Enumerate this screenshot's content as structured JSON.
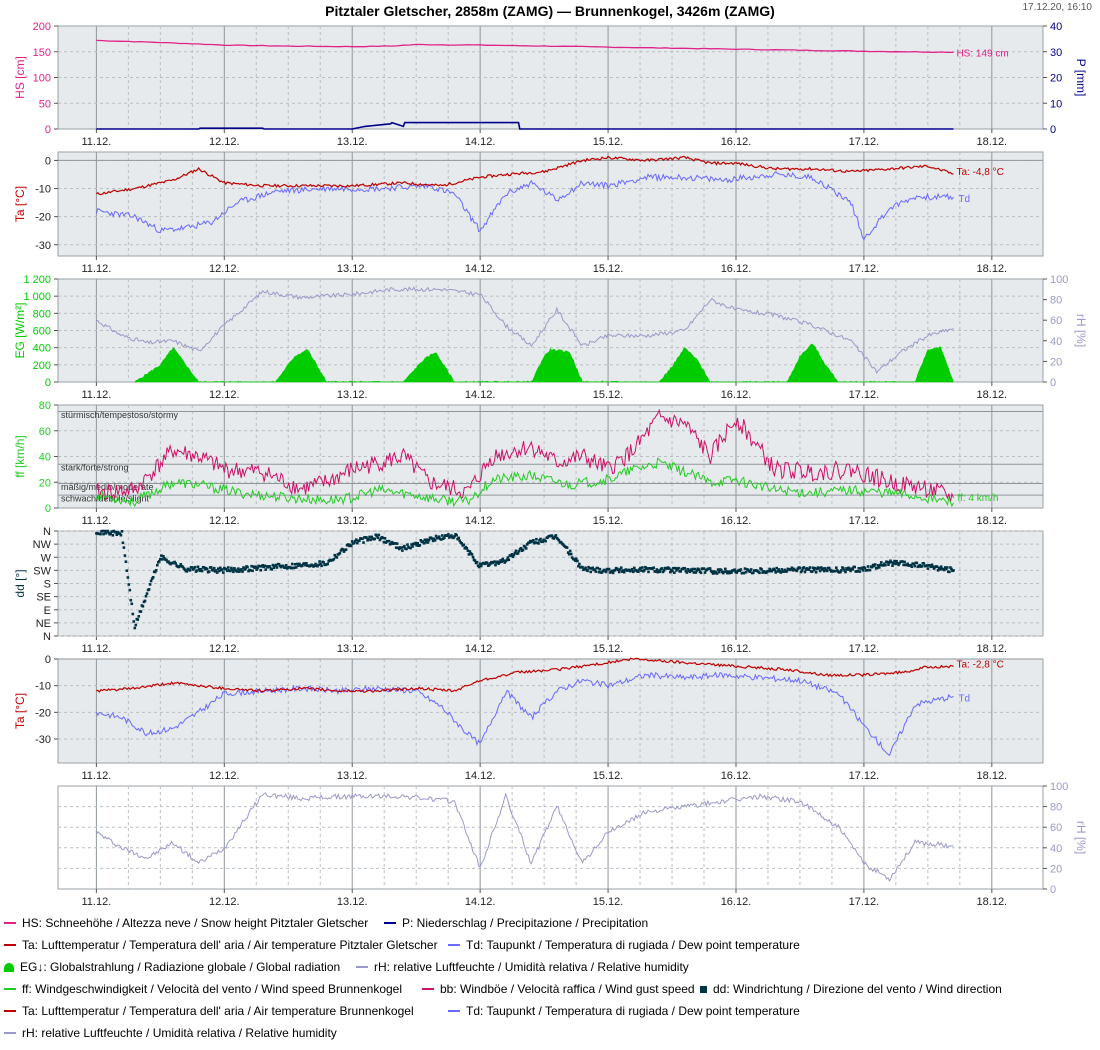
{
  "header": {
    "title": "Pitztaler Gletscher, 2858m (ZAMG) — Brunnenkogel, 3426m (ZAMG)",
    "timestamp": "17.12.20, 16:10"
  },
  "colors": {
    "snow": "#e0218a",
    "precip": "#00008b",
    "temp": "#c00000",
    "dew": "#6a6aff",
    "rh": "#9a9ac8",
    "radiation": "#00cc00",
    "wind": "#22cc22",
    "gust": "#cc1166",
    "winddir": "#003344",
    "panel_bg": "#e6eaec",
    "grid": "#b9bec2"
  },
  "chart_data": [
    {
      "type": "line",
      "panel": "snow-precip",
      "x_ticks": [
        "11.12.",
        "12.12.",
        "13.12.",
        "14.12.",
        "15.12.",
        "16.12.",
        "17.12.",
        "18.12."
      ],
      "ylabel": "HS [cm]",
      "ylim": [
        0,
        200
      ],
      "y_ticks": [
        "0",
        "50",
        "100",
        "150",
        "200"
      ],
      "y2label": "P [mm]",
      "y2lim": [
        0,
        40
      ],
      "y2_ticks": [
        "0",
        "10",
        "20",
        "30",
        "40"
      ],
      "annotation": "HS: 149 cm",
      "series": [
        {
          "name": "HS",
          "axis": "left",
          "x": [
            11.0,
            11.5,
            12.0,
            12.5,
            13.0,
            13.3,
            13.5,
            14.0,
            14.5,
            15.0,
            15.5,
            16.0,
            16.5,
            17.0,
            17.7
          ],
          "y": [
            172,
            168,
            163,
            161,
            160,
            161,
            164,
            163,
            161,
            159,
            157,
            155,
            153,
            151,
            149
          ]
        },
        {
          "name": "P",
          "axis": "right",
          "x": [
            11.0,
            11.8,
            11.81,
            12.3,
            12.31,
            13.0,
            13.1,
            13.3,
            13.31,
            13.4,
            13.41,
            14.3,
            14.31,
            17.7
          ],
          "y": [
            0,
            0,
            0.3,
            0.3,
            0,
            0,
            1,
            2,
            2.5,
            1,
            2.5,
            2.5,
            0,
            0
          ]
        }
      ]
    },
    {
      "type": "line",
      "panel": "temperature-pitztal",
      "x_ticks": [
        "11.12.",
        "12.12.",
        "13.12.",
        "14.12.",
        "15.12.",
        "16.12.",
        "17.12.",
        "18.12."
      ],
      "ylabel": "Ta [°C]",
      "ylim": [
        -34,
        3
      ],
      "y_ticks": [
        "-30",
        "-20",
        "-10",
        "0"
      ],
      "series": [
        {
          "name": "Ta",
          "label": "Ta: -4,8 °C",
          "x": [
            11.0,
            11.3,
            11.6,
            11.8,
            12.0,
            12.3,
            12.6,
            13.0,
            13.4,
            13.7,
            14.0,
            14.2,
            14.5,
            14.8,
            15.0,
            15.3,
            15.6,
            15.8,
            16.0,
            16.3,
            16.6,
            16.9,
            17.2,
            17.5,
            17.7
          ],
          "y": [
            -12,
            -10,
            -7,
            -3,
            -8,
            -9,
            -9,
            -9,
            -8,
            -9,
            -6,
            -5,
            -4,
            0,
            1,
            0,
            1,
            -1,
            -1,
            -3,
            -3,
            -4,
            -3,
            -2,
            -4.8
          ]
        },
        {
          "name": "Td",
          "label": "Td",
          "x": [
            11.0,
            11.3,
            11.5,
            11.7,
            11.9,
            12.1,
            12.4,
            12.8,
            13.2,
            13.6,
            13.8,
            14.0,
            14.2,
            14.4,
            14.6,
            14.8,
            15.0,
            15.3,
            15.6,
            15.9,
            16.3,
            16.6,
            16.9,
            17.0,
            17.2,
            17.4,
            17.7
          ],
          "y": [
            -18,
            -20,
            -25,
            -24,
            -22,
            -15,
            -11,
            -10,
            -10,
            -9,
            -12,
            -25,
            -12,
            -8,
            -14,
            -8,
            -9,
            -6,
            -6,
            -7,
            -5,
            -6,
            -15,
            -28,
            -17,
            -13,
            -13
          ]
        }
      ]
    },
    {
      "type": "area",
      "panel": "radiation-humidity",
      "x_ticks": [
        "11.12.",
        "12.12.",
        "13.12.",
        "14.12.",
        "15.12.",
        "16.12.",
        "17.12.",
        "18.12."
      ],
      "ylabel": "EG [W/m²]",
      "ylim": [
        0,
        1200
      ],
      "y_ticks": [
        "0",
        "200",
        "400",
        "600",
        "800",
        "1 000",
        "1 200"
      ],
      "y2label": "rH [%]",
      "y2lim": [
        0,
        100
      ],
      "y2_ticks": [
        "0",
        "20",
        "40",
        "60",
        "80",
        "100"
      ],
      "series": [
        {
          "name": "EG",
          "x": [
            11.3,
            11.5,
            11.6,
            11.7,
            11.8,
            12.4,
            12.55,
            12.65,
            12.8,
            13.4,
            13.55,
            13.65,
            13.8,
            14.4,
            14.5,
            14.55,
            14.7,
            14.8,
            15.4,
            15.5,
            15.6,
            15.7,
            15.8,
            16.4,
            16.5,
            16.6,
            16.7,
            16.8,
            17.4,
            17.5,
            17.6,
            17.7
          ],
          "y": [
            0,
            200,
            400,
            200,
            0,
            0,
            300,
            380,
            0,
            0,
            250,
            350,
            0,
            0,
            300,
            380,
            350,
            0,
            0,
            180,
            400,
            250,
            0,
            0,
            300,
            450,
            200,
            0,
            0,
            380,
            400,
            0
          ]
        },
        {
          "name": "rH",
          "axis": "right",
          "x": [
            11.0,
            11.2,
            11.4,
            11.6,
            11.8,
            12.0,
            12.3,
            12.6,
            13.0,
            13.3,
            13.7,
            14.0,
            14.2,
            14.4,
            14.6,
            14.8,
            15.0,
            15.3,
            15.6,
            15.8,
            16.0,
            16.3,
            16.6,
            16.9,
            17.1,
            17.3,
            17.5,
            17.7
          ],
          "y": [
            60,
            45,
            38,
            40,
            30,
            55,
            88,
            82,
            85,
            90,
            90,
            85,
            55,
            35,
            70,
            35,
            45,
            45,
            50,
            80,
            70,
            65,
            55,
            40,
            10,
            30,
            45,
            52
          ]
        }
      ]
    },
    {
      "type": "line",
      "panel": "wind-speed",
      "x_ticks": [
        "11.12.",
        "12.12.",
        "13.12.",
        "14.12.",
        "15.12.",
        "16.12.",
        "17.12.",
        "18.12."
      ],
      "ylabel": "ff [km/h]",
      "ylim": [
        0,
        80
      ],
      "y_ticks": [
        "0",
        "20",
        "40",
        "60",
        "80"
      ],
      "bands": [
        "stürmisch/tempestoso/stormy",
        "stark/forte/strong",
        "mäßig/medio/moderate",
        "schwach/debole/slight"
      ],
      "series": [
        {
          "name": "ff",
          "label": "ff: 4 km/h",
          "x": [
            11.0,
            11.3,
            11.6,
            11.8,
            12.1,
            12.5,
            12.8,
            13.0,
            13.2,
            13.5,
            13.7,
            13.9,
            14.1,
            14.4,
            14.7,
            15.0,
            15.2,
            15.4,
            15.6,
            15.8,
            16.0,
            16.3,
            16.6,
            16.9,
            17.2,
            17.5,
            17.7
          ],
          "y": [
            10,
            5,
            20,
            18,
            12,
            8,
            6,
            8,
            14,
            10,
            6,
            5,
            22,
            25,
            18,
            22,
            30,
            35,
            28,
            20,
            22,
            14,
            12,
            14,
            12,
            8,
            4
          ]
        },
        {
          "name": "bb",
          "x": [
            11.0,
            11.3,
            11.6,
            11.8,
            12.0,
            12.3,
            12.6,
            12.8,
            13.0,
            13.2,
            13.4,
            13.6,
            13.9,
            14.1,
            14.4,
            14.6,
            14.8,
            15.0,
            15.2,
            15.4,
            15.6,
            15.8,
            16.0,
            16.3,
            16.6,
            16.9,
            17.2,
            17.5,
            17.7
          ],
          "y": [
            12,
            14,
            45,
            40,
            30,
            28,
            15,
            20,
            30,
            35,
            40,
            20,
            12,
            40,
            48,
            35,
            40,
            30,
            45,
            70,
            65,
            40,
            70,
            30,
            28,
            30,
            20,
            15,
            8
          ]
        }
      ]
    },
    {
      "type": "scatter",
      "panel": "wind-direction",
      "x_ticks": [
        "11.12.",
        "12.12.",
        "13.12.",
        "14.12.",
        "15.12.",
        "16.12.",
        "17.12.",
        "18.12."
      ],
      "ylabel": "dd [°]",
      "y_ticks": [
        "N",
        "NE",
        "E",
        "SE",
        "S",
        "SW",
        "W",
        "NW",
        "N"
      ],
      "series": [
        {
          "name": "dd",
          "x": [
            11.0,
            11.2,
            11.3,
            11.5,
            11.7,
            12.0,
            12.3,
            12.5,
            12.8,
            13.0,
            13.2,
            13.4,
            13.6,
            13.8,
            14.0,
            14.2,
            14.4,
            14.6,
            14.8,
            15.0,
            15.3,
            15.6,
            15.9,
            16.2,
            16.5,
            16.8,
            17.0,
            17.2,
            17.5,
            17.7
          ],
          "y": [
            360,
            350,
            30,
            270,
            230,
            225,
            235,
            240,
            250,
            320,
            340,
            300,
            330,
            345,
            240,
            260,
            320,
            340,
            230,
            225,
            228,
            225,
            222,
            225,
            228,
            225,
            230,
            250,
            240,
            225
          ]
        }
      ]
    },
    {
      "type": "line",
      "panel": "temperature-brunnenkogel",
      "x_ticks": [
        "11.12.",
        "12.12.",
        "13.12.",
        "14.12.",
        "15.12.",
        "16.12.",
        "17.12.",
        "18.12."
      ],
      "ylabel": "Ta [°C]",
      "ylim": [
        -39,
        0
      ],
      "y_ticks": [
        "-30",
        "-20",
        "-10",
        "0"
      ],
      "series": [
        {
          "name": "Ta",
          "label": "Ta: -2,8 °C",
          "x": [
            11.0,
            11.3,
            11.6,
            12.0,
            12.3,
            12.6,
            12.9,
            13.2,
            13.5,
            13.8,
            14.0,
            14.3,
            14.6,
            14.9,
            15.2,
            15.5,
            15.8,
            16.1,
            16.4,
            16.7,
            17.0,
            17.3,
            17.5,
            17.7
          ],
          "y": [
            -12,
            -11,
            -9,
            -11,
            -12,
            -11,
            -12,
            -12,
            -11,
            -12,
            -8,
            -5,
            -4,
            -2,
            0,
            -1,
            -2,
            -3,
            -4,
            -6,
            -6,
            -5,
            -3,
            -2.8
          ]
        },
        {
          "name": "Td",
          "label": "Td",
          "x": [
            11.0,
            11.2,
            11.4,
            11.6,
            11.8,
            12.0,
            12.3,
            12.6,
            12.9,
            13.2,
            13.5,
            13.7,
            13.9,
            14.0,
            14.2,
            14.4,
            14.6,
            14.8,
            15.0,
            15.3,
            15.6,
            15.9,
            16.2,
            16.5,
            16.8,
            17.0,
            17.2,
            17.4,
            17.7
          ],
          "y": [
            -20,
            -22,
            -28,
            -26,
            -20,
            -13,
            -12,
            -11,
            -12,
            -11,
            -12,
            -18,
            -28,
            -32,
            -12,
            -22,
            -12,
            -8,
            -10,
            -6,
            -7,
            -6,
            -7,
            -8,
            -13,
            -25,
            -36,
            -17,
            -14
          ]
        }
      ]
    },
    {
      "type": "line",
      "panel": "humidity-brunnenkogel",
      "x_ticks": [
        "11.12.",
        "12.12.",
        "13.12.",
        "14.12.",
        "15.12.",
        "16.12.",
        "17.12.",
        "18.12."
      ],
      "y2label": "rH [%]",
      "y2lim": [
        0,
        100
      ],
      "y2_ticks": [
        "0",
        "20",
        "40",
        "60",
        "80",
        "100"
      ],
      "series": [
        {
          "name": "rH",
          "x": [
            11.0,
            11.2,
            11.4,
            11.6,
            11.8,
            12.0,
            12.3,
            12.6,
            13.0,
            13.4,
            13.8,
            14.0,
            14.2,
            14.4,
            14.6,
            14.8,
            15.0,
            15.3,
            15.6,
            15.9,
            16.2,
            16.5,
            16.8,
            17.0,
            17.2,
            17.4,
            17.7
          ],
          "y": [
            55,
            40,
            30,
            45,
            25,
            40,
            92,
            88,
            90,
            90,
            85,
            20,
            90,
            25,
            80,
            25,
            55,
            75,
            80,
            85,
            90,
            85,
            60,
            25,
            10,
            45,
            42
          ]
        }
      ]
    }
  ],
  "legend": [
    [
      {
        "kind": "line",
        "color": "snow",
        "label": "HS: Schneehöhe / Altezza neve / Snow height  Pitztaler Gletscher"
      },
      {
        "kind": "line",
        "color": "precip",
        "label": "P: Niederschlag / Precipitazione / Precipitation"
      }
    ],
    [
      {
        "kind": "line",
        "color": "temp",
        "label": "Ta: Lufttemperatur / Temperatura dell' aria / Air temperature  Pitztaler Gletscher"
      },
      {
        "kind": "line",
        "color": "dew",
        "label": "Td: Taupunkt / Temperatura di rugiada / Dew point temperature"
      }
    ],
    [
      {
        "kind": "fill",
        "color": "radiation",
        "label": "EG↓: Globalstrahlung / Radiazione globale / Global radiation"
      },
      {
        "kind": "line",
        "color": "rh",
        "label": "rH: relative Luftfeuchte / Umidità relativa / Relative humidity"
      }
    ],
    [
      {
        "kind": "line",
        "color": "wind",
        "label": "ff: Windgeschwindigkeit / Velocità del vento / Wind speed  Brunnenkogel"
      },
      {
        "kind": "line",
        "color": "gust",
        "label": "bb: Windböe / Velocità raffica / Wind gust speed"
      },
      {
        "kind": "square",
        "color": "winddir",
        "label": "dd: Windrichtung / Direzione del vento / Wind direction"
      }
    ],
    [
      {
        "kind": "line",
        "color": "temp",
        "label": "Ta: Lufttemperatur / Temperatura dell' aria / Air temperature  Brunnenkogel"
      },
      {
        "kind": "line",
        "color": "dew",
        "label": "Td: Taupunkt / Temperatura di rugiada / Dew point temperature"
      }
    ],
    [
      {
        "kind": "line",
        "color": "rh",
        "label": "rH: relative Luftfeuchte / Umidità relativa / Relative humidity"
      }
    ]
  ]
}
